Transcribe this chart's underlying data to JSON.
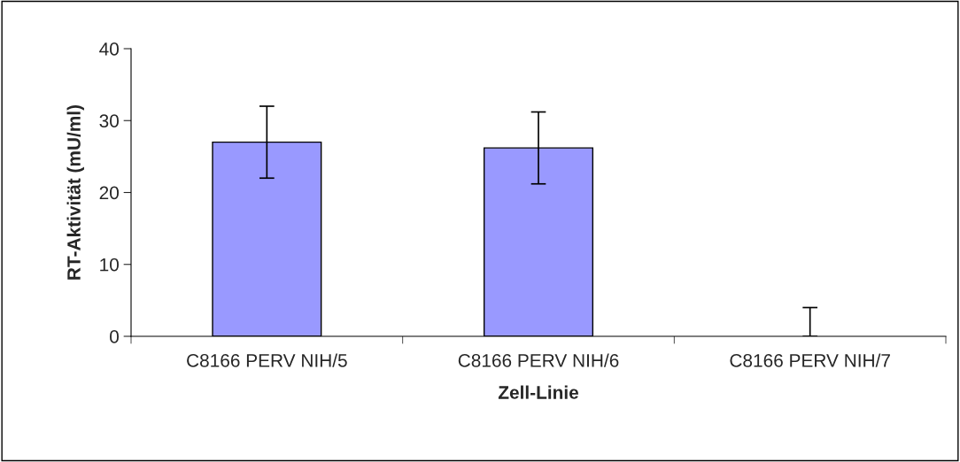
{
  "chart_data": {
    "type": "bar",
    "xlabel": "Zell-Linie",
    "ylabel": "RT-Aktivität (mU/ml)",
    "categories": [
      "C8166 PERV NIH/5",
      "C8166 PERV NIH/6",
      "C8166 PERV NIH/7"
    ],
    "values": [
      27,
      26.2,
      0
    ],
    "errors": [
      5,
      5,
      [
        0,
        4
      ]
    ],
    "color": "#9999ff",
    "ylim": [
      0,
      40
    ],
    "yticks": [
      0,
      10,
      20,
      30,
      40
    ],
    "grid": false
  }
}
